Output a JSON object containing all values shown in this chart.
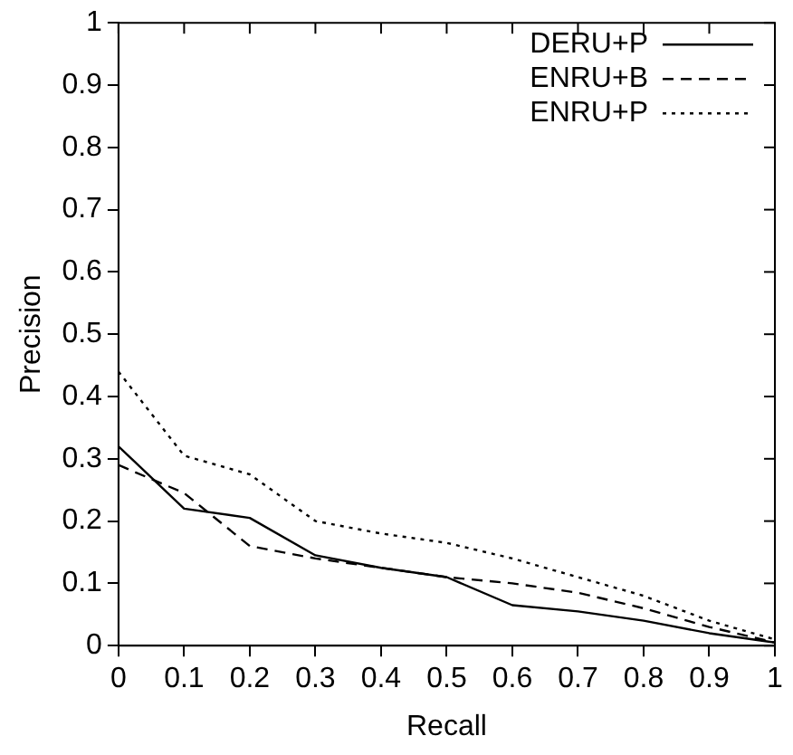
{
  "chart_data": {
    "type": "line",
    "xlabel": "Recall",
    "ylabel": "Precision",
    "x": [
      0,
      0.1,
      0.2,
      0.3,
      0.4,
      0.5,
      0.6,
      0.7,
      0.8,
      0.9,
      1
    ],
    "xlim": [
      0,
      1
    ],
    "xticks": [
      0,
      0.1,
      0.2,
      0.3,
      0.4,
      0.5,
      0.6,
      0.7,
      0.8,
      0.9,
      1
    ],
    "ylim": [
      0,
      1
    ],
    "yticks": [
      0,
      0.1,
      0.2,
      0.3,
      0.4,
      0.5,
      0.6,
      0.7,
      0.8,
      0.9,
      1
    ],
    "grid": false,
    "legend": "top right",
    "marker": "none",
    "series": [
      {
        "name": "DERU+P",
        "color": "#000000",
        "line_style": "solid",
        "values": [
          0.32,
          0.22,
          0.205,
          0.145,
          0.125,
          0.11,
          0.065,
          0.055,
          0.04,
          0.02,
          0.005
        ]
      },
      {
        "name": "ENRU+B",
        "color": "#000000",
        "line_style": "dashed",
        "values": [
          0.29,
          0.245,
          0.16,
          0.14,
          0.125,
          0.11,
          0.1,
          0.085,
          0.06,
          0.03,
          0.005
        ]
      },
      {
        "name": "ENRU+P",
        "color": "#000000",
        "line_style": "dotted",
        "values": [
          0.44,
          0.305,
          0.275,
          0.2,
          0.18,
          0.165,
          0.14,
          0.11,
          0.08,
          0.04,
          0.01
        ]
      }
    ]
  }
}
